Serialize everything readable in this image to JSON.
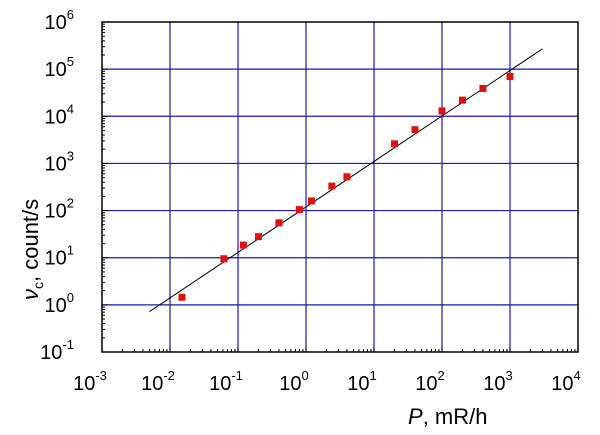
{
  "chart_data": {
    "type": "scatter",
    "x_scale": "log",
    "y_scale": "log",
    "xlim": [
      0.001,
      10000
    ],
    "ylim": [
      0.1,
      1000000
    ],
    "grid": true,
    "xlabel": {
      "symbol": "P",
      "rest": ", mR/h"
    },
    "ylabel": {
      "symbol": "ν",
      "subscript": "c",
      "rest": ", count/s"
    },
    "x_ticks": [
      {
        "base": "10",
        "exp": "-3"
      },
      {
        "base": "10",
        "exp": "-2"
      },
      {
        "base": "10",
        "exp": "-1"
      },
      {
        "base": "10",
        "exp": "0"
      },
      {
        "base": "10",
        "exp": "1"
      },
      {
        "base": "10",
        "exp": "2"
      },
      {
        "base": "10",
        "exp": "3"
      },
      {
        "base": "10",
        "exp": "4"
      }
    ],
    "y_ticks": [
      {
        "base": "10",
        "exp": "-1"
      },
      {
        "base": "10",
        "exp": "0"
      },
      {
        "base": "10",
        "exp": "1"
      },
      {
        "base": "10",
        "exp": "2"
      },
      {
        "base": "10",
        "exp": "3"
      },
      {
        "base": "10",
        "exp": "4"
      },
      {
        "base": "10",
        "exp": "5"
      },
      {
        "base": "10",
        "exp": "6"
      }
    ],
    "series": [
      {
        "marker": "square",
        "color": "#e01010",
        "points": [
          {
            "x": 0.015,
            "y": 1.45
          },
          {
            "x": 0.062,
            "y": 9.5
          },
          {
            "x": 0.12,
            "y": 18.5
          },
          {
            "x": 0.2,
            "y": 28
          },
          {
            "x": 0.4,
            "y": 55
          },
          {
            "x": 0.8,
            "y": 105
          },
          {
            "x": 1.2,
            "y": 160
          },
          {
            "x": 2.4,
            "y": 330
          },
          {
            "x": 4,
            "y": 520
          },
          {
            "x": 20,
            "y": 2600
          },
          {
            "x": 40,
            "y": 5200
          },
          {
            "x": 100,
            "y": 13000
          },
          {
            "x": 200,
            "y": 22000
          },
          {
            "x": 400,
            "y": 39000
          },
          {
            "x": 1000,
            "y": 70000
          }
        ]
      }
    ],
    "fit_line": {
      "color": "#000000",
      "from": {
        "x": 0.005,
        "y": 0.72
      },
      "to": {
        "x": 3000,
        "y": 270000
      }
    }
  }
}
